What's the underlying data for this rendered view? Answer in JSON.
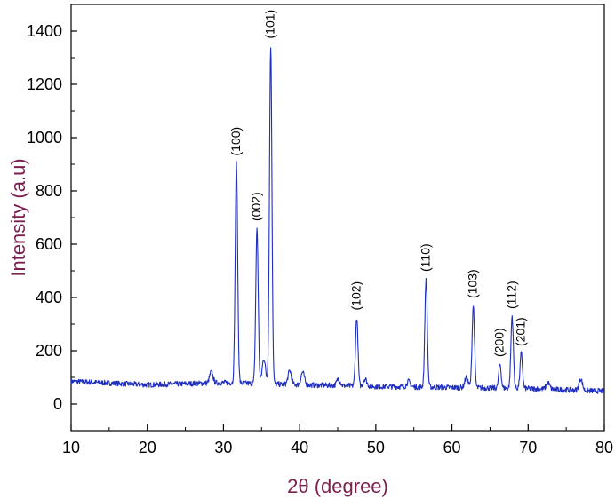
{
  "chart_data": {
    "type": "line",
    "title": "",
    "xlabel": "2θ (degree)",
    "ylabel": "Intensity (a.u)",
    "label_color": "#7b1f4f",
    "line_color": "#1f2fbf",
    "xlim": [
      10,
      80
    ],
    "ylim": [
      -100,
      1500
    ],
    "xticks": [
      10,
      20,
      30,
      40,
      50,
      60,
      70,
      80
    ],
    "yticks": [
      0,
      200,
      400,
      600,
      800,
      1000,
      1200,
      1400
    ],
    "grid": false,
    "legend": "none",
    "baseline": [
      [
        10,
        85
      ],
      [
        20,
        72
      ],
      [
        30,
        80
      ],
      [
        40,
        72
      ],
      [
        50,
        66
      ],
      [
        60,
        62
      ],
      [
        70,
        58
      ],
      [
        80,
        48
      ]
    ],
    "peaks": [
      {
        "label": "(100)",
        "x": 31.7,
        "y": 905
      },
      {
        "label": "(002)",
        "x": 34.4,
        "y": 660
      },
      {
        "label": "(101)",
        "x": 36.2,
        "y": 1345
      },
      {
        "label": "(102)",
        "x": 47.5,
        "y": 325
      },
      {
        "label": "(110)",
        "x": 56.6,
        "y": 470
      },
      {
        "label": "(103)",
        "x": 62.8,
        "y": 370
      },
      {
        "label": "(200)",
        "x": 66.3,
        "y": 150
      },
      {
        "label": "(112)",
        "x": 67.9,
        "y": 330
      },
      {
        "label": "(201)",
        "x": 69.1,
        "y": 190
      }
    ],
    "minor_peaks": [
      {
        "x": 28.4,
        "y": 120
      },
      {
        "x": 35.3,
        "y": 170
      },
      {
        "x": 38.7,
        "y": 125
      },
      {
        "x": 40.4,
        "y": 120
      },
      {
        "x": 45.1,
        "y": 95
      },
      {
        "x": 48.6,
        "y": 95
      },
      {
        "x": 54.3,
        "y": 85
      },
      {
        "x": 61.9,
        "y": 100
      },
      {
        "x": 72.6,
        "y": 80
      },
      {
        "x": 76.9,
        "y": 95
      }
    ]
  }
}
